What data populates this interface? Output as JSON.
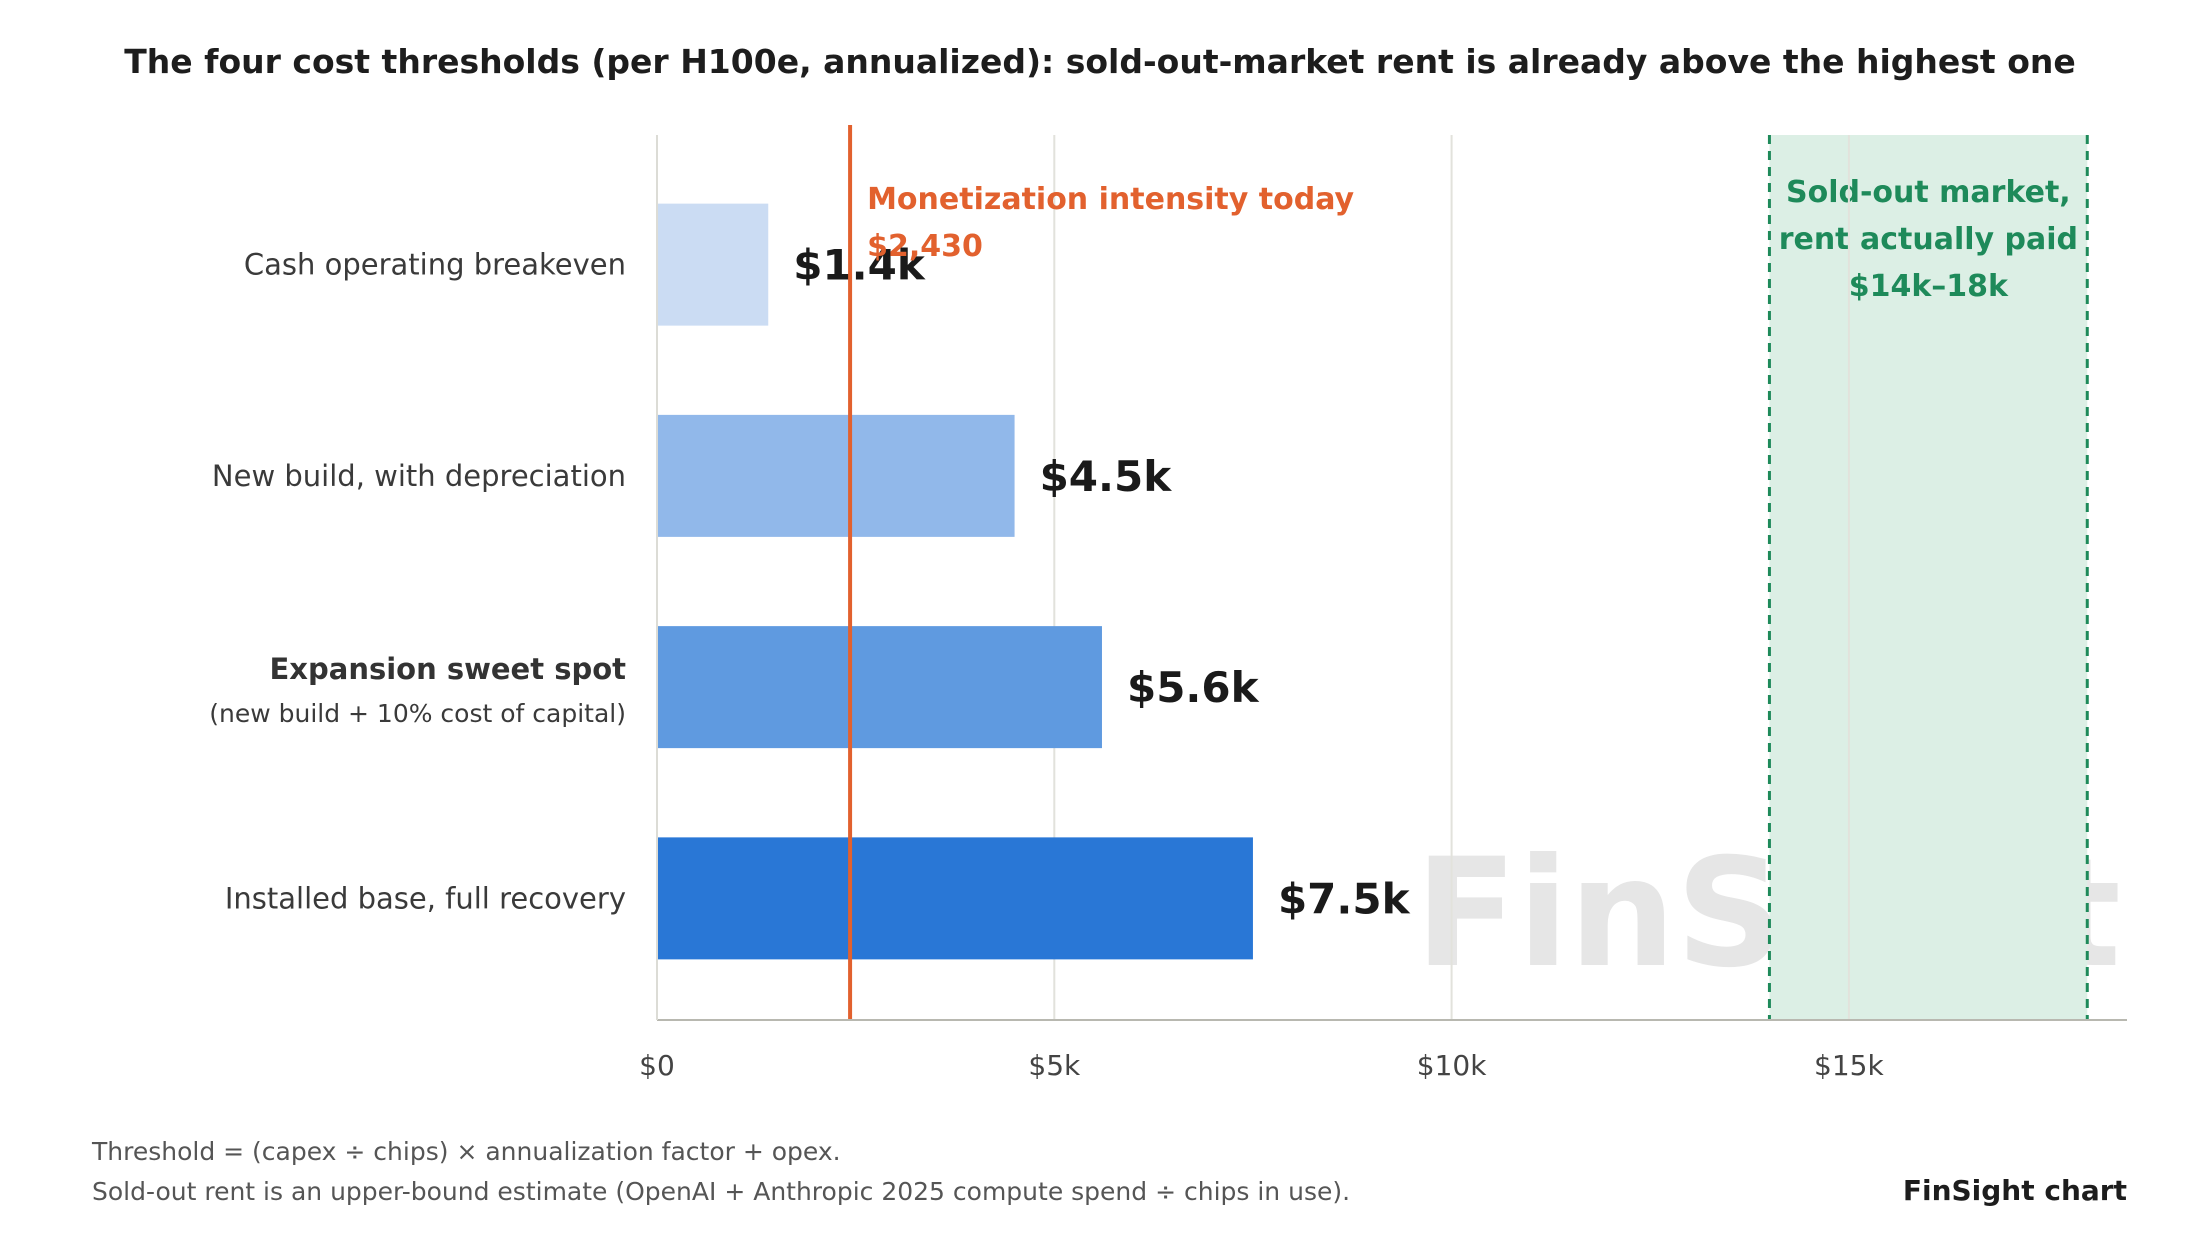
{
  "chart_data": {
    "type": "bar",
    "orientation": "horizontal",
    "title": "The four cost thresholds (per H100e, annualized): sold-out-market rent is already above the highest one",
    "categories": [
      {
        "label": "Cash operating breakeven",
        "sublabel": "",
        "bold": false
      },
      {
        "label": "New build, with depreciation",
        "sublabel": "",
        "bold": false
      },
      {
        "label": "Expansion sweet spot",
        "sublabel": "(new build + 10% cost of capital)",
        "bold": true
      },
      {
        "label": "Installed base, full recovery",
        "sublabel": "",
        "bold": false
      }
    ],
    "values": [
      1400,
      4500,
      5600,
      7500
    ],
    "value_labels": [
      "$1.4k",
      "$4.5k",
      "$5.6k",
      "$7.5k"
    ],
    "bar_colors": [
      "#cbdcf3",
      "#91b8ea",
      "#5f9ae0",
      "#2977d6"
    ],
    "xlim": [
      0,
      18500
    ],
    "x_ticks": [
      0,
      5000,
      10000,
      15000
    ],
    "x_tick_labels": [
      "$0",
      "$5k",
      "$10k",
      "$15k"
    ],
    "grid": true,
    "reference_line": {
      "value": 2430,
      "label": "Monetization intensity today",
      "value_label": "$2,430",
      "color": "#e2612e"
    },
    "shaded_band": {
      "range": [
        14000,
        18000
      ],
      "label_lines": [
        "Sold-out market,",
        "rent actually paid",
        "$14k–18k"
      ],
      "color": "#1e8a5a",
      "fill": "#dcefe5"
    },
    "footnotes": [
      "Threshold = (capex ÷ chips) × annualization factor + opex.",
      "Sold-out rent is an upper-bound estimate (OpenAI + Anthropic 2025 compute spend ÷ chips in use)."
    ],
    "credit": "FinSight chart",
    "watermark": "FinSight"
  }
}
